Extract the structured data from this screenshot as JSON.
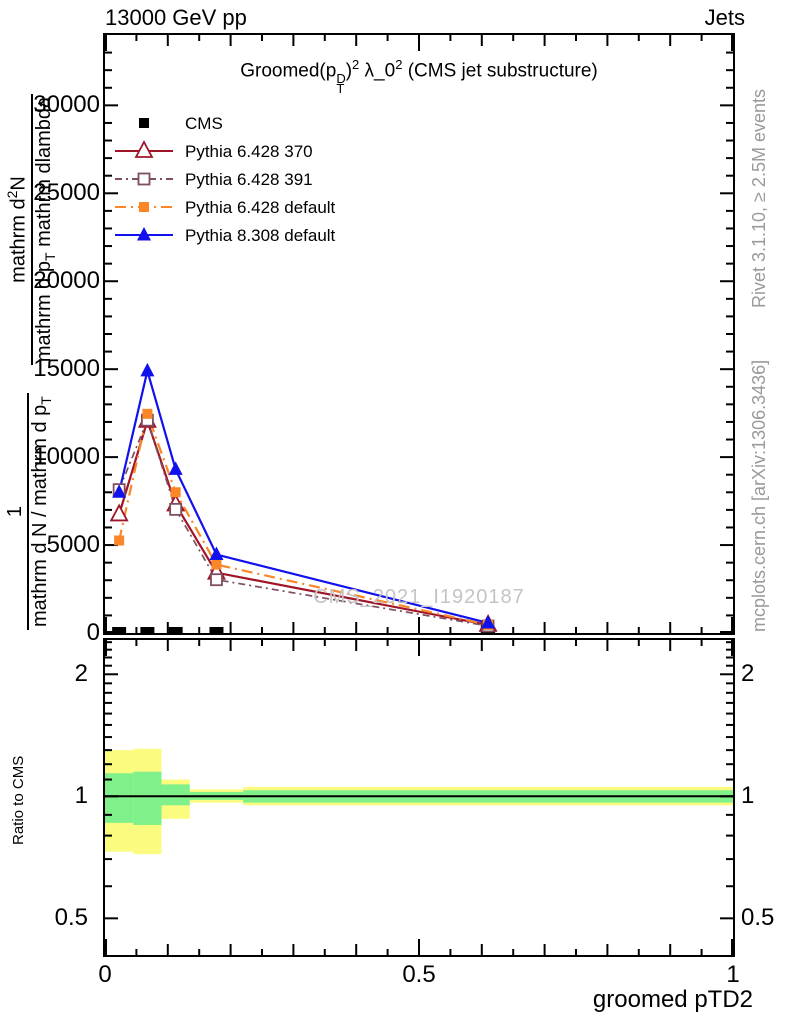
{
  "header": {
    "left": "13000 GeV pp",
    "right": "Jets"
  },
  "title": {
    "pre": "Groomed(p",
    "p_sup": "D",
    "p_sub": "T",
    "close": ")",
    "sup1": "2",
    "mid": " λ_0",
    "sup2": "2",
    "post": " (CMS jet substructure)"
  },
  "watermark": "CMS_2021_I1920187",
  "side_notes": {
    "top_right": "Rivet 3.1.10, ≥ 2.5M events",
    "bottom_right": "mcplots.cern.ch [arXiv:1306.3436]"
  },
  "ylabel": {
    "f1_num": "1",
    "f1_den": "mathrm d N / mathrm d p",
    "f1_den_sub": "T",
    "f2_num_a": "mathrm d",
    "f2_num_sup": "2",
    "f2_num_b": "N",
    "f2_den_a": "mathrm d p",
    "f2_den_sub": "T",
    "f2_den_b": " mathrm dlambda"
  },
  "xlabel": "groomed pTD2",
  "ratio_ylabel": "Ratio to CMS",
  "chart_data": {
    "type": "line",
    "title": "Groomed (p_T^D)^2 lambda_0^2 (CMS jet substructure)",
    "xlabel": "groomed pTD2",
    "ylabel": "1/(dN/dp_T) d^2N/(dp_T dlambda)",
    "xlim": [
      0,
      1
    ],
    "ylim": [
      0,
      34000
    ],
    "grid": false,
    "legend_position": "top-left",
    "x_ticks": {
      "major": [
        0,
        0.5,
        1
      ],
      "labels": [
        "0",
        "0.5",
        "1"
      ],
      "medium_step": 0.1,
      "minor_step": 0.05
    },
    "y_ticks": {
      "major_step": 5000,
      "minor_step": 1000,
      "labels": [
        "0",
        "5000",
        "10000",
        "15000",
        "20000",
        "25000",
        "30000"
      ]
    },
    "bin_edges": [
      0,
      0.045,
      0.09,
      0.135,
      0.22,
      1.0
    ],
    "x": [
      0.0225,
      0.0675,
      0.1125,
      0.1775,
      0.61
    ],
    "series": [
      {
        "name": "CMS",
        "color": "#000000",
        "marker": "filled-square",
        "line": "none",
        "values": [
          60,
          60,
          60,
          60,
          60
        ]
      },
      {
        "name": "Pythia 6.428 370",
        "color": "#a01428",
        "marker": "open-triangle",
        "line": "solid",
        "values": [
          6740,
          12060,
          7310,
          3430,
          460
        ]
      },
      {
        "name": "Pythia 6.428 391",
        "color": "#7d4e5f",
        "marker": "open-square",
        "line": "dashdot",
        "values": [
          8150,
          12100,
          7030,
          3030,
          400
        ]
      },
      {
        "name": "Pythia 6.428 default",
        "color": "#fb8628",
        "marker": "filled-square",
        "line": "dashdot",
        "values": [
          5260,
          12460,
          8000,
          3890,
          460
        ]
      },
      {
        "name": "Pythia 8.308 default",
        "color": "#1111ee",
        "marker": "filled-triangle",
        "line": "solid",
        "values": [
          8000,
          14900,
          9300,
          4460,
          570
        ]
      }
    ],
    "ratio_panel": {
      "ylabel": "Ratio to CMS",
      "scale": "log",
      "ylim": [
        0.406,
        2.43
      ],
      "reference_line": 1.0,
      "y_tick_values": [
        0.5,
        1,
        2
      ],
      "y_tick_labels": [
        "0.5",
        "1",
        "2"
      ],
      "band_colors": {
        "yellow": "#fbfb7f",
        "green": "#7ff08a"
      },
      "bands": [
        {
          "x0": 0.0,
          "x1": 0.045,
          "yellow": [
            0.73,
            1.3
          ],
          "green": [
            0.86,
            1.14
          ]
        },
        {
          "x0": 0.045,
          "x1": 0.09,
          "yellow": [
            0.72,
            1.31
          ],
          "green": [
            0.85,
            1.15
          ]
        },
        {
          "x0": 0.09,
          "x1": 0.135,
          "yellow": [
            0.88,
            1.1
          ],
          "green": [
            0.95,
            1.07
          ]
        },
        {
          "x0": 0.135,
          "x1": 0.22,
          "yellow": [
            0.965,
            1.04
          ],
          "green": [
            0.98,
            1.025
          ]
        },
        {
          "x0": 0.22,
          "x1": 1.0,
          "yellow": [
            0.95,
            1.055
          ],
          "green": [
            0.965,
            1.035
          ]
        }
      ]
    }
  }
}
